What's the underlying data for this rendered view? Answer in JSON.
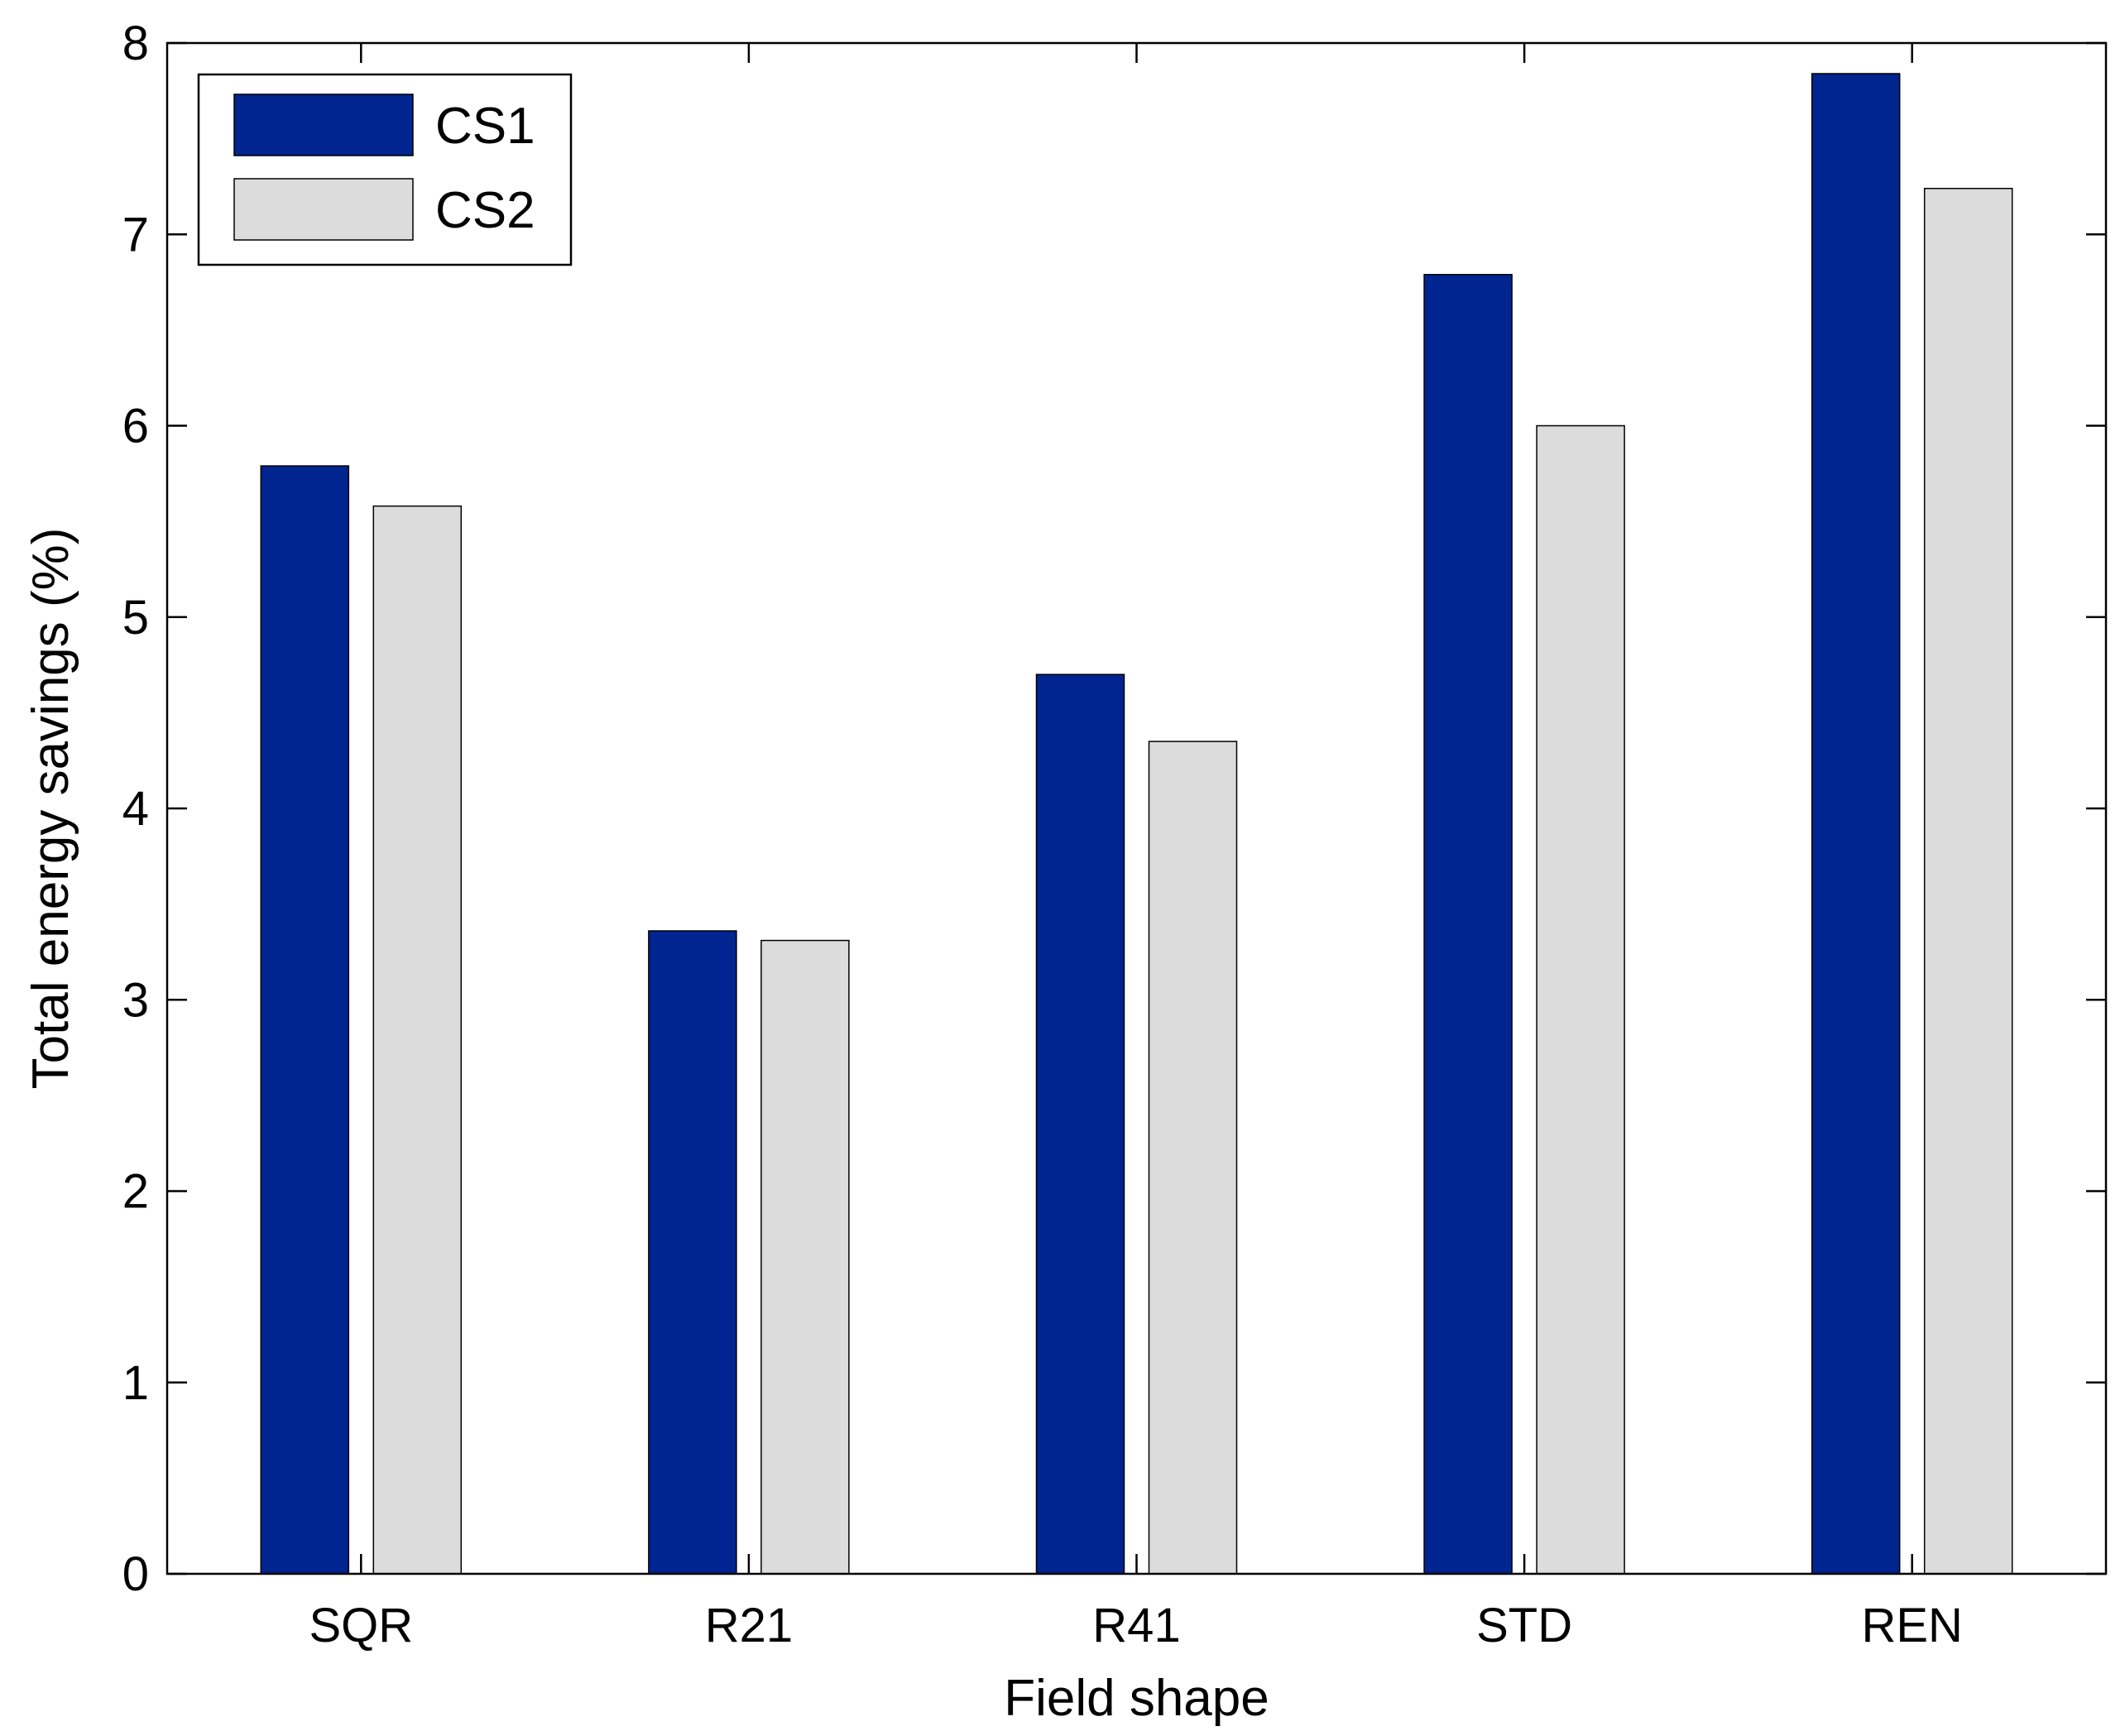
{
  "chart_data": {
    "type": "bar",
    "title": "",
    "xlabel": "Field shape",
    "ylabel": "Total energy savings (%)",
    "categories": [
      "SQR",
      "R21",
      "R41",
      "STD",
      "REN"
    ],
    "series": [
      {
        "name": "CS1",
        "color": "#002490",
        "values": [
          5.79,
          3.36,
          4.7,
          6.79,
          7.84
        ]
      },
      {
        "name": "CS2",
        "color": "#dcdcdc",
        "values": [
          5.58,
          3.31,
          4.35,
          6.0,
          7.24
        ]
      }
    ],
    "ylim": [
      0,
      8
    ],
    "yticks": [
      "0",
      "1",
      "2",
      "3",
      "4",
      "5",
      "6",
      "7",
      "8"
    ],
    "grid": false,
    "legend_position": "top-left"
  }
}
